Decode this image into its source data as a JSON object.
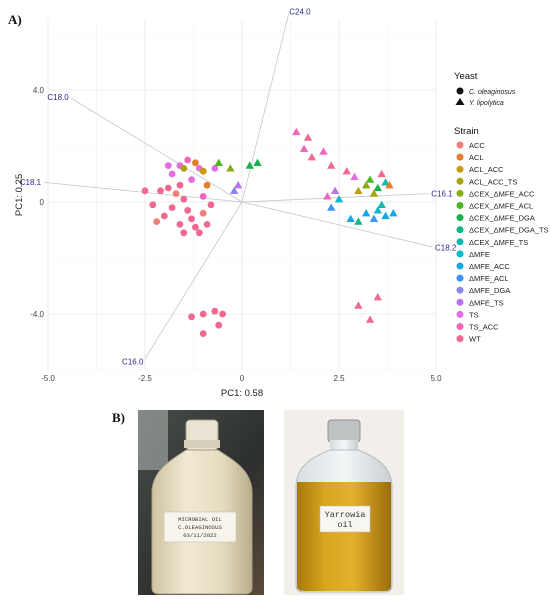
{
  "figure": {
    "panel_a_label": "A)",
    "panel_b_label": "B)"
  },
  "chart_data": {
    "type": "scatter",
    "subtype": "pca-biplot",
    "xlabel": "PC1: 0.58",
    "ylabel": "PC1: 0.25",
    "xlim": [
      -5.0,
      5.0
    ],
    "ylim": [
      -6.0,
      6.5
    ],
    "xticks": [
      "-5.0",
      "-2.5",
      "0",
      "2.5",
      "5.0"
    ],
    "yticks": [
      {
        "value": 4.0,
        "label": "4.0"
      },
      {
        "value": 0.0,
        "label": "0"
      },
      {
        "value": -4.0,
        "label": "-4.0"
      }
    ],
    "grid": true,
    "legend_position": "right",
    "loadings": [
      {
        "label": "C24.0",
        "x": 1.2,
        "y": 6.7
      },
      {
        "label": "C18.0",
        "x": -4.4,
        "y": 3.7
      },
      {
        "label": "C18.1",
        "x": -5.1,
        "y": 0.7
      },
      {
        "label": "C16.1",
        "x": 4.8,
        "y": 0.3
      },
      {
        "label": "C18.2",
        "x": 4.9,
        "y": -1.6
      },
      {
        "label": "C16.0",
        "x": -2.5,
        "y": -5.6
      }
    ],
    "shape_legend": {
      "title": "Yeast",
      "items": [
        {
          "name": "C. oleaginosus",
          "shape": "circle"
        },
        {
          "name": "Y. lipolytica",
          "shape": "triangle"
        }
      ]
    },
    "color_legend": {
      "title": "Strain",
      "items": [
        {
          "name": "ACC",
          "color": "#f07f7a"
        },
        {
          "name": "ACL",
          "color": "#e27f28"
        },
        {
          "name": "ACL_ACC",
          "color": "#c79a14"
        },
        {
          "name": "ACL_ACC_TS",
          "color": "#a7a20f"
        },
        {
          "name": "ΔCEX_ΔMFE_ACC",
          "color": "#84ae16"
        },
        {
          "name": "ΔCEX_ΔMFE_ACL",
          "color": "#4bb525"
        },
        {
          "name": "ΔCEX_ΔMFE_DGA",
          "color": "#17b24b"
        },
        {
          "name": "ΔCEX_ΔMFE_DGA_TS",
          "color": "#12b387"
        },
        {
          "name": "ΔCEX_ΔMFE_TS",
          "color": "#13b6ad"
        },
        {
          "name": "ΔMFE",
          "color": "#14b5cf"
        },
        {
          "name": "ΔMFE_ACC",
          "color": "#16a8e5"
        },
        {
          "name": "ΔMFE_ACL",
          "color": "#3d95ef"
        },
        {
          "name": "ΔMFE_DGA",
          "color": "#8a86ee"
        },
        {
          "name": "ΔMFE_TS",
          "color": "#b874e8"
        },
        {
          "name": "TS",
          "color": "#e36de1"
        },
        {
          "name": "TS_ACC",
          "color": "#f266bd"
        },
        {
          "name": "WT",
          "color": "#f06a8f"
        }
      ]
    },
    "points": [
      {
        "x": -2.1,
        "y": 0.4,
        "strain": "WT",
        "yeast": "C. oleaginosus"
      },
      {
        "x": -1.9,
        "y": 0.5,
        "strain": "WT",
        "yeast": "C. oleaginosus"
      },
      {
        "x": -1.7,
        "y": 0.3,
        "strain": "ACC",
        "yeast": "C. oleaginosus"
      },
      {
        "x": -1.6,
        "y": 0.6,
        "strain": "WT",
        "yeast": "C. oleaginosus"
      },
      {
        "x": -1.5,
        "y": 0.1,
        "strain": "WT",
        "yeast": "C. oleaginosus"
      },
      {
        "x": -1.4,
        "y": -0.3,
        "strain": "WT",
        "yeast": "C. oleaginosus"
      },
      {
        "x": -1.3,
        "y": -0.6,
        "strain": "WT",
        "yeast": "C. oleaginosus"
      },
      {
        "x": -1.2,
        "y": -0.9,
        "strain": "WT",
        "yeast": "C. oleaginosus"
      },
      {
        "x": -1.1,
        "y": -1.1,
        "strain": "WT",
        "yeast": "C. oleaginosus"
      },
      {
        "x": -1.0,
        "y": -0.4,
        "strain": "ACC",
        "yeast": "C. oleaginosus"
      },
      {
        "x": -0.9,
        "y": -0.8,
        "strain": "WT",
        "yeast": "C. oleaginosus"
      },
      {
        "x": -1.6,
        "y": -0.8,
        "strain": "WT",
        "yeast": "C. oleaginosus"
      },
      {
        "x": -1.8,
        "y": -0.2,
        "strain": "WT",
        "yeast": "C. oleaginosus"
      },
      {
        "x": -2.0,
        "y": -0.5,
        "strain": "WT",
        "yeast": "C. oleaginosus"
      },
      {
        "x": -2.3,
        "y": -0.1,
        "strain": "WT",
        "yeast": "C. oleaginosus"
      },
      {
        "x": -2.5,
        "y": 0.4,
        "strain": "WT",
        "yeast": "C. oleaginosus"
      },
      {
        "x": -2.2,
        "y": -0.7,
        "strain": "ACC",
        "yeast": "C. oleaginosus"
      },
      {
        "x": -1.5,
        "y": -1.1,
        "strain": "WT",
        "yeast": "C. oleaginosus"
      },
      {
        "x": -0.8,
        "y": -0.1,
        "strain": "WT",
        "yeast": "C. oleaginosus"
      },
      {
        "x": -1.3,
        "y": 0.8,
        "strain": "TS",
        "yeast": "C. oleaginosus"
      },
      {
        "x": -1.1,
        "y": 1.2,
        "strain": "TS",
        "yeast": "C. oleaginosus"
      },
      {
        "x": -1.6,
        "y": 1.3,
        "strain": "TS",
        "yeast": "C. oleaginosus"
      },
      {
        "x": -1.4,
        "y": 1.5,
        "strain": "TS_ACC",
        "yeast": "C. oleaginosus"
      },
      {
        "x": -1.8,
        "y": 1.0,
        "strain": "TS",
        "yeast": "C. oleaginosus"
      },
      {
        "x": -1.2,
        "y": 1.4,
        "strain": "ACL",
        "yeast": "C. oleaginosus"
      },
      {
        "x": -1.0,
        "y": 1.1,
        "strain": "ACL_ACC",
        "yeast": "C. oleaginosus"
      },
      {
        "x": -1.5,
        "y": 1.2,
        "strain": "ACL_ACC_TS",
        "yeast": "C. oleaginosus"
      },
      {
        "x": -0.9,
        "y": 0.6,
        "strain": "ACL",
        "yeast": "C. oleaginosus"
      },
      {
        "x": -1.9,
        "y": 1.3,
        "strain": "TS",
        "yeast": "C. oleaginosus"
      },
      {
        "x": -0.7,
        "y": 1.2,
        "strain": "TS",
        "yeast": "C. oleaginosus"
      },
      {
        "x": -1.0,
        "y": 0.2,
        "strain": "TS_ACC",
        "yeast": "C. oleaginosus"
      },
      {
        "x": -1.0,
        "y": -4.0,
        "strain": "WT",
        "yeast": "C. oleaginosus"
      },
      {
        "x": -0.7,
        "y": -3.9,
        "strain": "WT",
        "yeast": "C. oleaginosus"
      },
      {
        "x": -0.5,
        "y": -4.0,
        "strain": "WT",
        "yeast": "C. oleaginosus"
      },
      {
        "x": -1.3,
        "y": -4.1,
        "strain": "WT",
        "yeast": "C. oleaginosus"
      },
      {
        "x": -0.6,
        "y": -4.4,
        "strain": "WT",
        "yeast": "C. oleaginosus"
      },
      {
        "x": -1.0,
        "y": -4.7,
        "strain": "WT",
        "yeast": "C. oleaginosus"
      },
      {
        "x": -0.2,
        "y": 0.4,
        "strain": "ΔMFE_DGA",
        "yeast": "Y. lipolytica"
      },
      {
        "x": -0.1,
        "y": 0.6,
        "strain": "ΔMFE_TS",
        "yeast": "Y. lipolytica"
      },
      {
        "x": -0.6,
        "y": 1.4,
        "strain": "ΔCEX_ΔMFE_ACL",
        "yeast": "Y. lipolytica"
      },
      {
        "x": 0.2,
        "y": 1.3,
        "strain": "ΔCEX_ΔMFE_DGA",
        "yeast": "Y. lipolytica"
      },
      {
        "x": 0.4,
        "y": 1.4,
        "strain": "ΔCEX_ΔMFE_DGA",
        "yeast": "Y. lipolytica"
      },
      {
        "x": -0.3,
        "y": 1.2,
        "strain": "ΔCEX_ΔMFE_ACC",
        "yeast": "Y. lipolytica"
      },
      {
        "x": 1.4,
        "y": 2.5,
        "strain": "TS_ACC",
        "yeast": "Y. lipolytica"
      },
      {
        "x": 1.7,
        "y": 2.3,
        "strain": "WT",
        "yeast": "Y. lipolytica"
      },
      {
        "x": 1.6,
        "y": 1.9,
        "strain": "TS_ACC",
        "yeast": "Y. lipolytica"
      },
      {
        "x": 1.8,
        "y": 1.6,
        "strain": "WT",
        "yeast": "Y. lipolytica"
      },
      {
        "x": 2.1,
        "y": 1.8,
        "strain": "TS_ACC",
        "yeast": "Y. lipolytica"
      },
      {
        "x": 2.3,
        "y": 1.3,
        "strain": "WT",
        "yeast": "Y. lipolytica"
      },
      {
        "x": 2.2,
        "y": 0.2,
        "strain": "TS_ACC",
        "yeast": "Y. lipolytica"
      },
      {
        "x": 2.4,
        "y": 0.4,
        "strain": "ΔMFE_TS",
        "yeast": "Y. lipolytica"
      },
      {
        "x": 2.5,
        "y": 0.1,
        "strain": "ΔMFE",
        "yeast": "Y. lipolytica"
      },
      {
        "x": 2.3,
        "y": -0.2,
        "strain": "ΔMFE_ACL",
        "yeast": "Y. lipolytica"
      },
      {
        "x": 2.7,
        "y": 1.1,
        "strain": "WT",
        "yeast": "Y. lipolytica"
      },
      {
        "x": 2.9,
        "y": 0.9,
        "strain": "TS",
        "yeast": "Y. lipolytica"
      },
      {
        "x": 3.0,
        "y": 0.4,
        "strain": "ACL_ACC",
        "yeast": "Y. lipolytica"
      },
      {
        "x": 3.2,
        "y": 0.6,
        "strain": "ΔCEX_ΔMFE_ACC",
        "yeast": "Y. lipolytica"
      },
      {
        "x": 3.3,
        "y": 0.8,
        "strain": "ΔCEX_ΔMFE_ACL",
        "yeast": "Y. lipolytica"
      },
      {
        "x": 3.5,
        "y": 0.5,
        "strain": "ΔCEX_ΔMFE_DGA",
        "yeast": "Y. lipolytica"
      },
      {
        "x": 3.7,
        "y": 0.7,
        "strain": "ΔCEX_ΔMFE_TS",
        "yeast": "Y. lipolytica"
      },
      {
        "x": 3.6,
        "y": 1.0,
        "strain": "WT",
        "yeast": "Y. lipolytica"
      },
      {
        "x": 3.8,
        "y": 0.6,
        "strain": "ACL",
        "yeast": "Y. lipolytica"
      },
      {
        "x": 3.4,
        "y": 0.3,
        "strain": "ACL_ACC_TS",
        "yeast": "Y. lipolytica"
      },
      {
        "x": 2.8,
        "y": -0.6,
        "strain": "ΔMFE_ACC",
        "yeast": "Y. lipolytica"
      },
      {
        "x": 3.0,
        "y": -0.7,
        "strain": "ΔCEX_ΔMFE_DGA_TS",
        "yeast": "Y. lipolytica"
      },
      {
        "x": 3.2,
        "y": -0.4,
        "strain": "ΔMFE_ACC",
        "yeast": "Y. lipolytica"
      },
      {
        "x": 3.5,
        "y": -0.3,
        "strain": "ΔMFE",
        "yeast": "Y. lipolytica"
      },
      {
        "x": 3.7,
        "y": -0.5,
        "strain": "ΔMFE_ACC",
        "yeast": "Y. lipolytica"
      },
      {
        "x": 3.6,
        "y": -0.1,
        "strain": "ΔCEX_ΔMFE_TS",
        "yeast": "Y. lipolytica"
      },
      {
        "x": 3.9,
        "y": -0.4,
        "strain": "ΔMFE_ACC",
        "yeast": "Y. lipolytica"
      },
      {
        "x": 3.4,
        "y": -0.6,
        "strain": "ΔMFE_ACL",
        "yeast": "Y. lipolytica"
      },
      {
        "x": 3.0,
        "y": -3.7,
        "strain": "WT",
        "yeast": "Y. lipolytica"
      },
      {
        "x": 3.5,
        "y": -3.4,
        "strain": "WT",
        "yeast": "Y. lipolytica"
      },
      {
        "x": 3.3,
        "y": -4.2,
        "strain": "WT",
        "yeast": "Y. lipolytica"
      }
    ]
  },
  "photos": {
    "left": {
      "label_lines": [
        "MICROBIAL OIL",
        "C.OLEAGINOSUS",
        "03/11/2022"
      ]
    },
    "right": {
      "label_lines": [
        "Yarrowia",
        "oil"
      ]
    }
  }
}
